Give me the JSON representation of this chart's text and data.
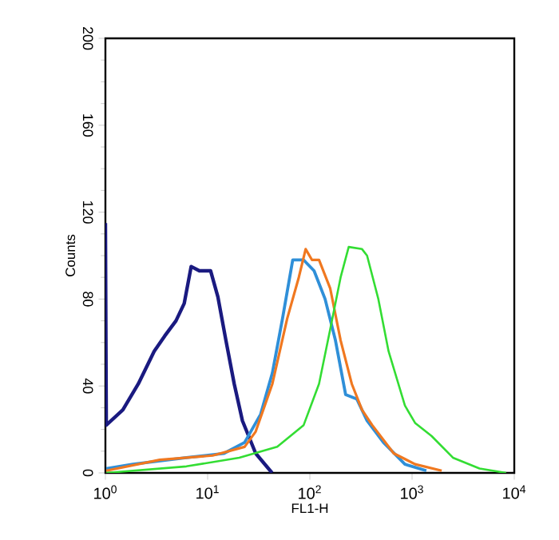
{
  "chart_data": {
    "type": "line",
    "xlabel": "FL1-H",
    "ylabel": "Counts",
    "log": "x",
    "xlim": [
      1,
      10000
    ],
    "ylim": [
      0,
      200
    ],
    "xticks": [
      {
        "value": 1,
        "label": "10$^{0}$"
      },
      {
        "value": 10,
        "label": "10$^{1}$"
      },
      {
        "value": 100,
        "label": "10$^{2}$"
      },
      {
        "value": 1000,
        "label": "10$^{3}$"
      },
      {
        "value": 10000,
        "label": "10$^{4}$"
      }
    ],
    "yticks": [
      0,
      40,
      80,
      120,
      160,
      200
    ],
    "grid": false,
    "series": [
      {
        "color": "#1a1a80",
        "x": [
          1,
          1.02,
          1.48,
          2.1,
          3.0,
          3.8,
          4.9,
          5.9,
          6.9,
          8.3,
          10.7,
          12.6,
          15.1,
          18.2,
          21.9,
          29.5,
          42.7
        ],
        "values": [
          115,
          22,
          29,
          41,
          56,
          63,
          70,
          78,
          95,
          93,
          93,
          81,
          61,
          41,
          24,
          9,
          0
        ]
      },
      {
        "color": "#2f8fd8",
        "x": [
          1.02,
          1.86,
          6.2,
          14.5,
          23,
          33,
          43,
          54,
          68,
          87,
          110,
          141,
          178,
          224,
          288,
          363,
          525,
          851,
          1380
        ],
        "values": [
          2,
          4,
          7,
          9,
          14,
          27,
          46,
          71,
          98,
          98,
          93,
          80,
          61,
          36,
          34,
          24,
          14,
          4,
          1
        ]
      },
      {
        "color": "#f07820",
        "x": [
          1.02,
          3.4,
          11.2,
          23,
          29.5,
          43,
          60,
          78,
          91,
          105,
          123,
          158,
          200,
          257,
          324,
          407,
          661,
          1070,
          1950
        ],
        "values": [
          1,
          6,
          8,
          12,
          19,
          41,
          71,
          90,
          103,
          98,
          98,
          85,
          61,
          41,
          29,
          22,
          9,
          4,
          1
        ]
      },
      {
        "color": "#33dd33",
        "x": [
          1.02,
          6.2,
          20.4,
          48,
          87,
          123,
          158,
          200,
          240,
          324,
          363,
          468,
          589,
          851,
          1070,
          1550,
          2510,
          4570,
          8320
        ],
        "values": [
          0,
          3,
          7,
          12,
          22,
          41,
          66,
          90,
          104,
          103,
          100,
          80,
          56,
          31,
          23,
          17,
          7,
          2,
          0
        ]
      }
    ]
  }
}
